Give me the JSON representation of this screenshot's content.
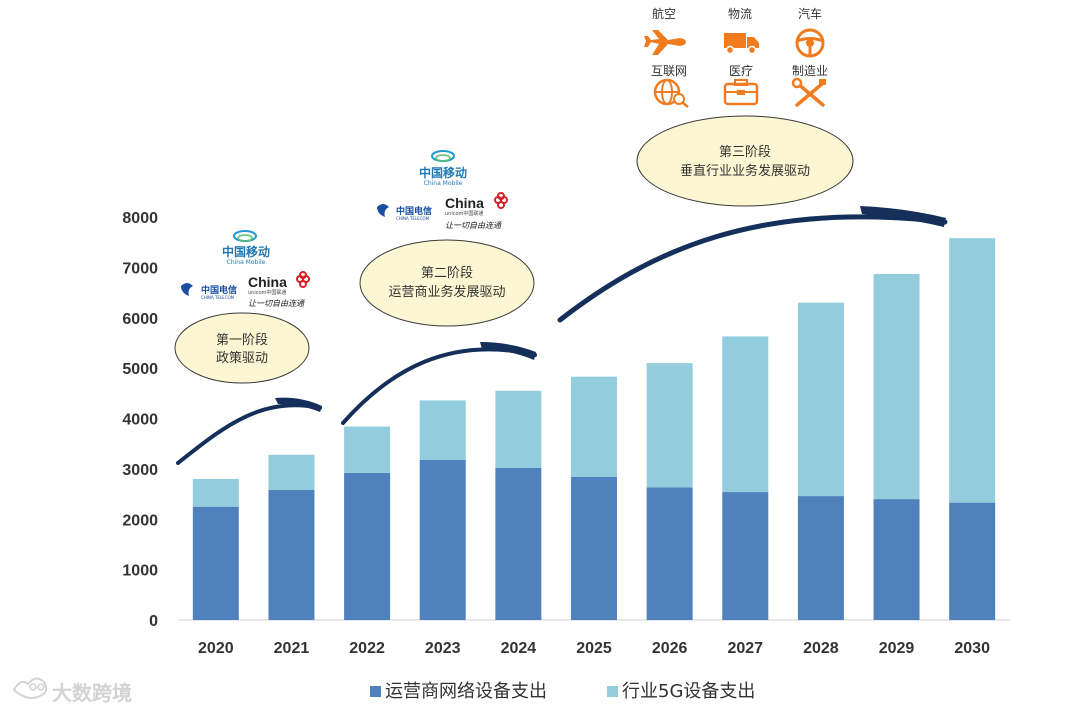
{
  "chart_data": {
    "type": "bar",
    "stacked": true,
    "categories": [
      "2020",
      "2021",
      "2022",
      "2023",
      "2024",
      "2025",
      "2026",
      "2027",
      "2028",
      "2029",
      "2030"
    ],
    "series": [
      {
        "name": "运营商网络设备支出",
        "color": "#4f81bd",
        "values": [
          2250,
          2580,
          2920,
          3180,
          3020,
          2840,
          2630,
          2540,
          2460,
          2400,
          2330
        ]
      },
      {
        "name": "行业5G设备支出",
        "color": "#93cddd",
        "values": [
          550,
          700,
          920,
          1180,
          1530,
          1990,
          2470,
          3090,
          3840,
          4470,
          5250
        ]
      }
    ],
    "ylim": [
      0,
      8000
    ],
    "yticks": [
      "0",
      "1000",
      "2000",
      "3000",
      "4000",
      "5000",
      "6000",
      "7000",
      "8000"
    ],
    "legend_position": "bottom",
    "stages": [
      {
        "line1": "第一阶段",
        "line2": "政策驱动"
      },
      {
        "line1": "第二阶段",
        "line2": "运营商业务发展驱动"
      },
      {
        "line1": "第三阶段",
        "line2": "垂直行业业务发展驱动"
      }
    ],
    "industries": [
      {
        "label": "航空",
        "icon": "airplane-icon"
      },
      {
        "label": "物流",
        "icon": "truck-icon"
      },
      {
        "label": "汽车",
        "icon": "steering-wheel-icon"
      },
      {
        "label": "互联网",
        "icon": "globe-icon"
      },
      {
        "label": "医疗",
        "icon": "medical-kit-icon"
      },
      {
        "label": "制造业",
        "icon": "tools-icon"
      }
    ]
  },
  "logos": {
    "china_mobile": "中国移动",
    "china_mobile_en": "China Mobile",
    "china_telecom": "中国电信",
    "china_telecom_en": "CHINA TELECOM",
    "china_unicom": "China",
    "china_unicom_sub": "unicom中国联通",
    "china_unicom_slogan": "让一切自由连通"
  },
  "watermark": {
    "text": "大数跨境"
  },
  "colors": {
    "arrow": "#14305a",
    "bubble_fill": "#fdf6d3",
    "icon_orange": "#f07c1f"
  }
}
